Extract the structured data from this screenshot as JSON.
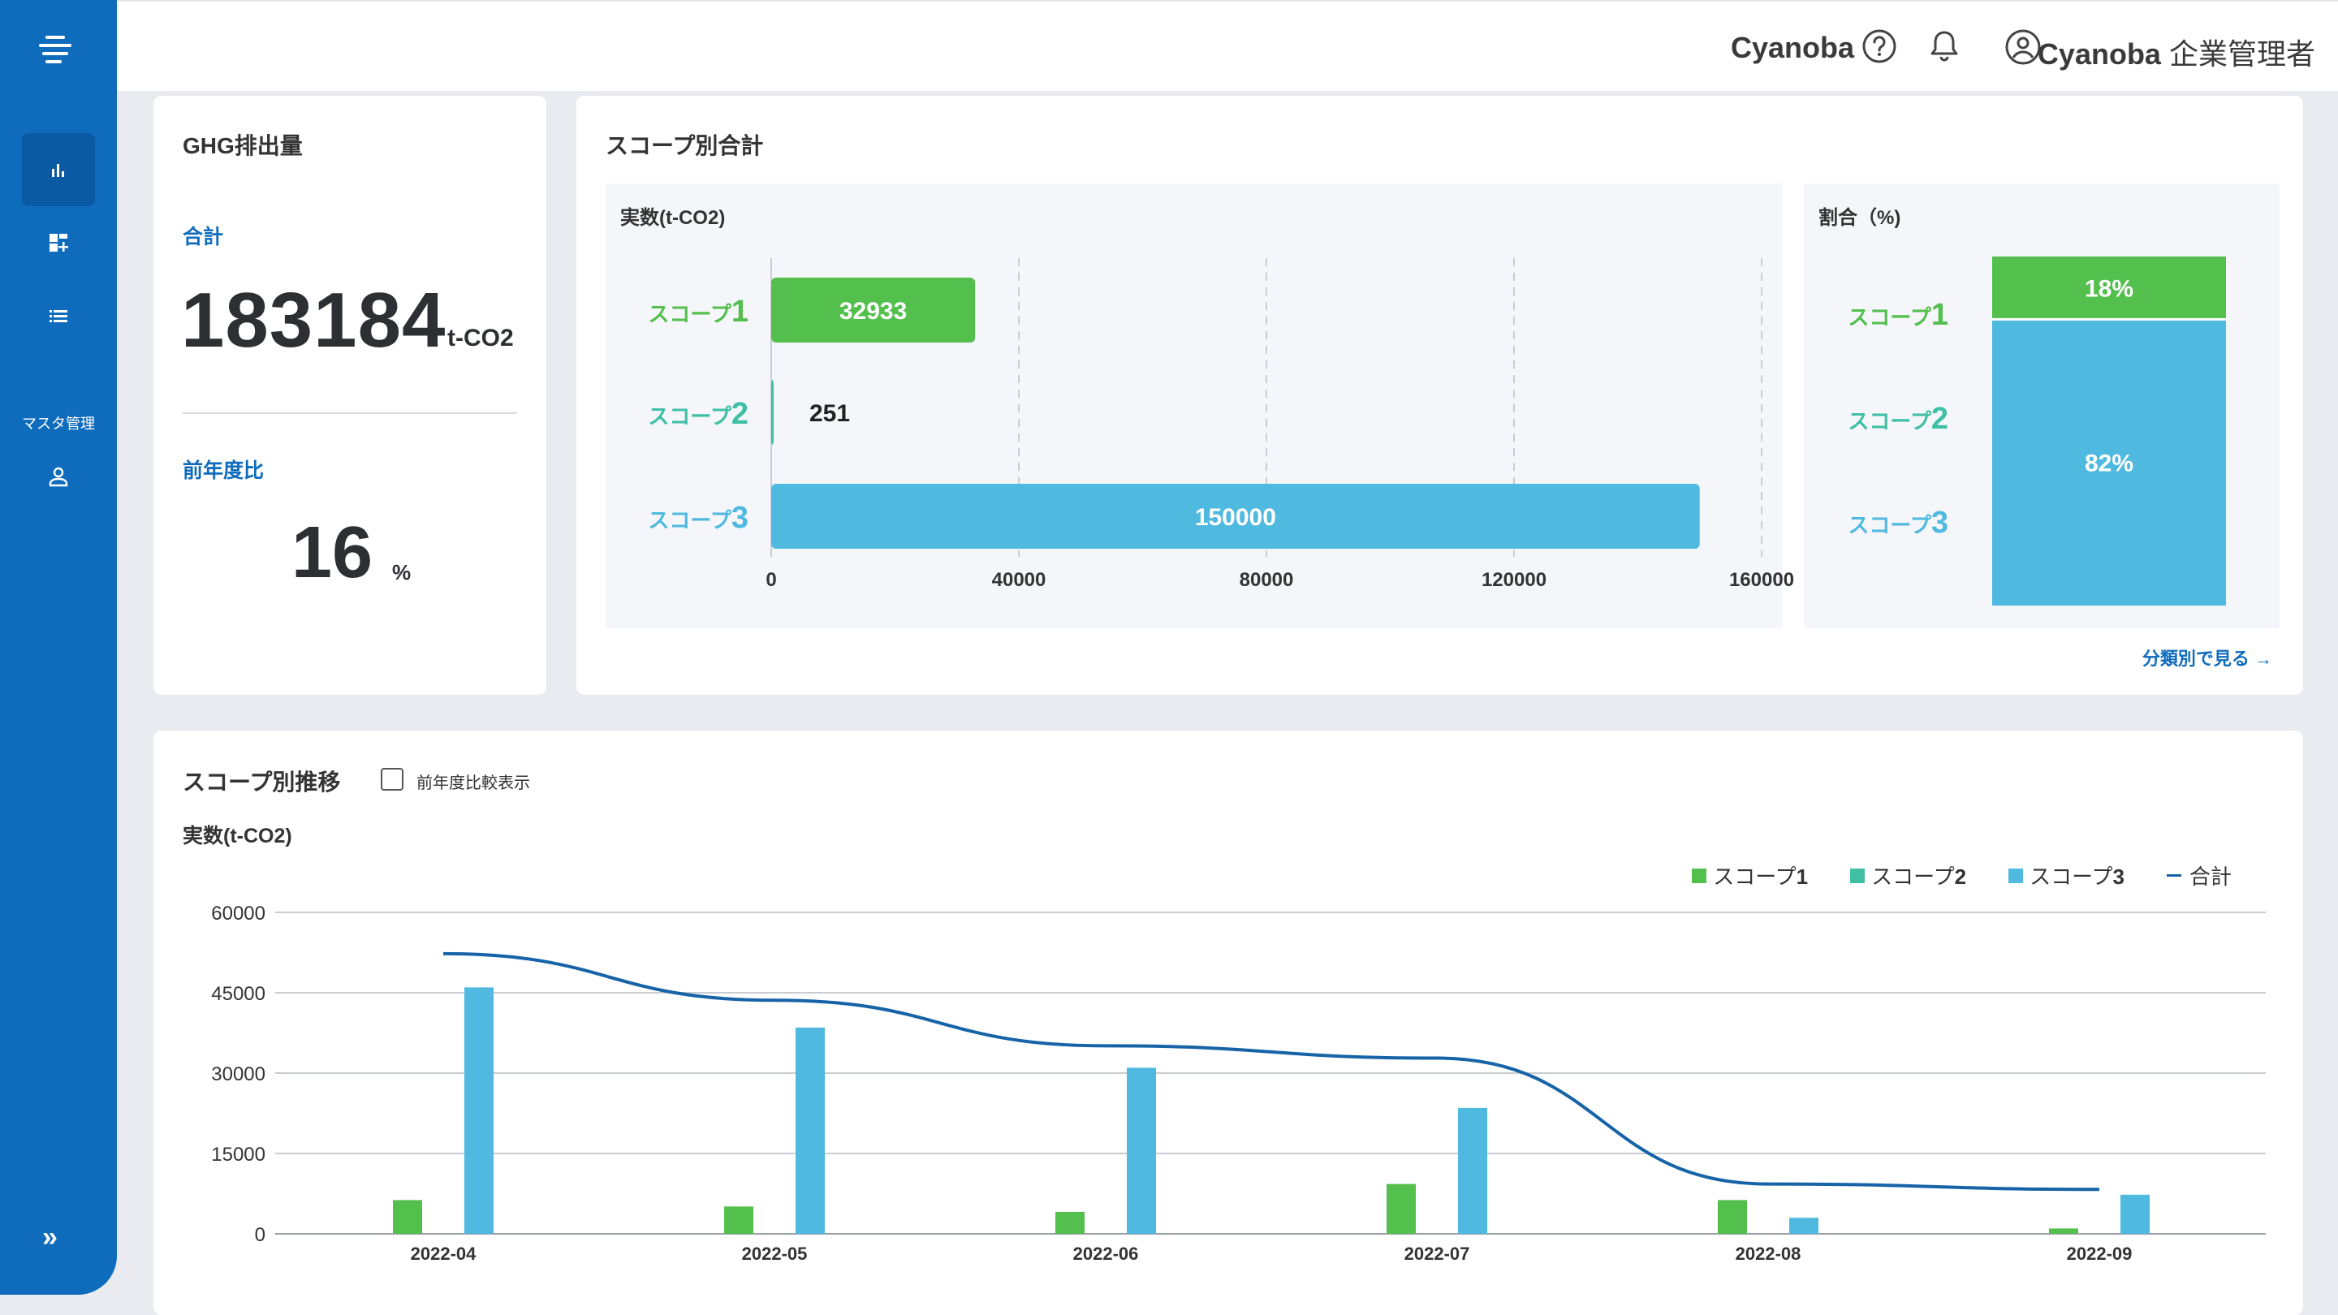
{
  "header": {
    "brand": "Cyanoba",
    "user_company": "Cyanoba",
    "user_role": "企業管理者"
  },
  "sidebar": {
    "section_master": "マスタ管理",
    "expand_label": "»"
  },
  "ghg_card": {
    "title": "GHG排出量",
    "total_label": "合計",
    "total_value": "183184",
    "total_unit": "t-CO2",
    "yoy_label": "前年度比",
    "yoy_value": "16",
    "yoy_unit": "%"
  },
  "scope_total_card": {
    "title": "スコープ別合計",
    "actual_title": "実数(t-CO2)",
    "ratio_title": "割合（%)",
    "see_more": "分類別で見る →"
  },
  "trend_card": {
    "title": "スコープ別推移",
    "compare_label": "前年度比較表示",
    "y_unit": "実数(t-CO2)"
  },
  "chart_data": [
    {
      "type": "bar",
      "orientation": "horizontal",
      "title": "実数(t-CO2)",
      "categories": [
        "スコープ1",
        "スコープ2",
        "スコープ3"
      ],
      "values": [
        32933,
        251,
        150000
      ],
      "value_labels": [
        "32933",
        "251",
        "150000"
      ],
      "xlim": [
        0,
        160000
      ],
      "xticks": [
        0,
        40000,
        80000,
        120000,
        160000
      ],
      "xtick_labels": [
        "0",
        "40000",
        "80000",
        "120000",
        "160000"
      ],
      "category_prefix": "スコープ",
      "category_numbers": [
        "1",
        "2",
        "3"
      ],
      "colors": [
        "#53bf4d",
        "#3fbfa4",
        "#4fb9e0"
      ],
      "grid": "vertical-dashed"
    },
    {
      "type": "bar",
      "orientation": "stacked-100",
      "title": "割合（%)",
      "categories": [
        "スコープ1",
        "スコープ2",
        "スコープ3"
      ],
      "values": [
        18,
        0,
        82
      ],
      "value_labels": [
        "18%",
        "",
        "82%"
      ],
      "category_prefix": "スコープ",
      "category_numbers": [
        "1",
        "2",
        "3"
      ],
      "colors": [
        "#53bf4d",
        "#3fbfa4",
        "#4fb9e0"
      ]
    },
    {
      "type": "bar",
      "title": "スコープ別推移",
      "ylabel": "実数(t-CO2)",
      "categories": [
        "2022-04",
        "2022-05",
        "2022-06",
        "2022-07",
        "2022-08",
        "2022-09"
      ],
      "ylim": [
        0,
        60000
      ],
      "yticks": [
        0,
        15000,
        30000,
        45000,
        60000
      ],
      "ytick_labels": [
        "0",
        "15000",
        "30000",
        "45000",
        "60000"
      ],
      "grid": "horizontal",
      "legend_position": "top-right",
      "series": [
        {
          "name": "スコープ1",
          "legend_prefix": "スコープ",
          "legend_num": "1",
          "type": "bar",
          "color": "#53bf4d",
          "values": [
            6300,
            5100,
            4100,
            9300,
            6300,
            1000
          ]
        },
        {
          "name": "スコープ2",
          "legend_prefix": "スコープ",
          "legend_num": "2",
          "type": "bar",
          "color": "#3fbfa4",
          "values": [
            0,
            0,
            0,
            0,
            0,
            0
          ]
        },
        {
          "name": "スコープ3",
          "legend_prefix": "スコープ",
          "legend_num": "3",
          "type": "bar",
          "color": "#4fb9e0",
          "values": [
            46000,
            38500,
            31000,
            23500,
            3000,
            7300
          ]
        },
        {
          "name": "合計",
          "type": "line",
          "color": "#1663a8",
          "values": [
            52300,
            43600,
            35100,
            32800,
            9300,
            8300
          ]
        }
      ]
    }
  ]
}
